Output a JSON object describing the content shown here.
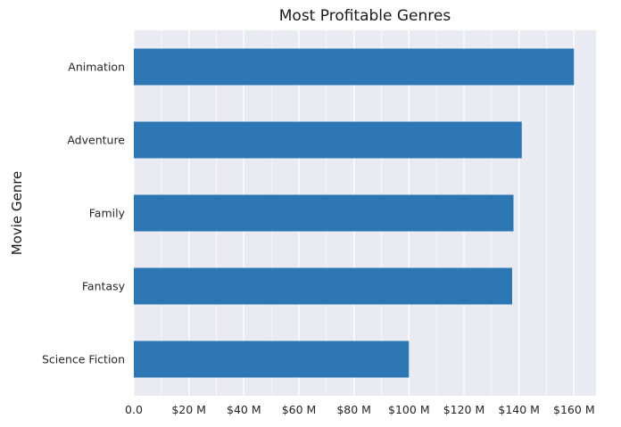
{
  "chart_data": {
    "type": "bar",
    "orientation": "horizontal",
    "title": "Most Profitable Genres",
    "xlabel": "",
    "ylabel": "Movie Genre",
    "categories": [
      "Animation",
      "Adventure",
      "Family",
      "Fantasy",
      "Science Fiction"
    ],
    "values": [
      160,
      141,
      138,
      137.5,
      100
    ],
    "value_unit": "$M",
    "xlim": [
      0,
      168
    ],
    "xticks": [
      0,
      20,
      40,
      60,
      80,
      100,
      120,
      140,
      160
    ],
    "xtick_labels": [
      "0.0",
      "$20 M",
      "$40 M",
      "$60 M",
      "$80 M",
      "$100 M",
      "$120 M",
      "$140 M",
      "$160 M"
    ],
    "grid": true,
    "colors": {
      "bar": "#2b76b3",
      "plot_background": "#eaeaf2",
      "grid": "#ffffff"
    }
  }
}
